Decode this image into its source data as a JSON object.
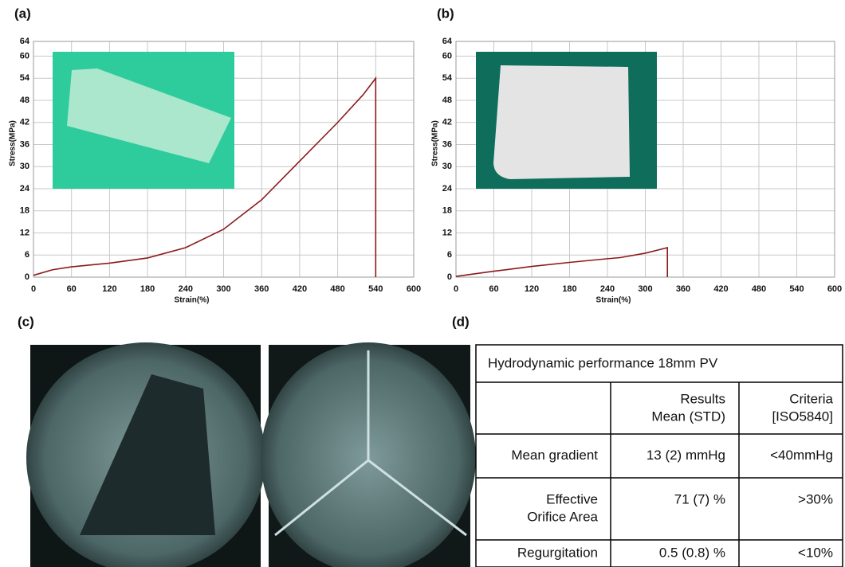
{
  "chart_data": [
    {
      "type": "line",
      "panel_label": "(a)",
      "xlabel": "Strain(%)",
      "ylabel": "Stress(MPa)",
      "x": [
        0,
        30,
        60,
        120,
        180,
        240,
        300,
        360,
        420,
        480,
        520,
        540,
        540
      ],
      "series": [
        {
          "color": "#8b1a1a",
          "values": [
            0.5,
            2,
            2.8,
            3.8,
            5.2,
            8,
            13,
            21,
            31.5,
            42,
            49.5,
            54,
            0
          ]
        }
      ],
      "xlim": [
        0,
        600
      ],
      "ylim": [
        0,
        64
      ],
      "xticks": [
        0,
        60,
        120,
        180,
        240,
        300,
        360,
        420,
        480,
        540,
        600
      ],
      "yticks": [
        0,
        6,
        12,
        18,
        24,
        30,
        36,
        42,
        48,
        54,
        60,
        64
      ],
      "grid": true
    },
    {
      "type": "line",
      "panel_label": "(b)",
      "xlabel": "Strain(%)",
      "ylabel": "Stress(MPa)",
      "x": [
        0,
        60,
        120,
        180,
        240,
        260,
        300,
        335,
        335
      ],
      "series": [
        {
          "color": "#8b1a1a",
          "values": [
            0.2,
            1.6,
            2.9,
            4,
            5,
            5.3,
            6.5,
            8,
            0
          ]
        }
      ],
      "xlim": [
        0,
        600
      ],
      "ylim": [
        0,
        64
      ],
      "xticks": [
        0,
        60,
        120,
        180,
        240,
        300,
        360,
        420,
        480,
        540,
        600
      ],
      "yticks": [
        0,
        6,
        12,
        18,
        24,
        30,
        36,
        42,
        48,
        54,
        60,
        64
      ],
      "grid": true
    }
  ],
  "panel_c": {
    "label": "(c)"
  },
  "table": {
    "label": "(d)",
    "title": "Hydrodynamic performance 18mm PV",
    "header": [
      [
        "Results",
        "Mean (STD)"
      ],
      [
        "Criteria",
        "[ISO5840]"
      ]
    ],
    "rows": [
      [
        [
          "Mean gradient"
        ],
        [
          "13 (2) mmHg"
        ],
        [
          "<40mmHg"
        ]
      ],
      [
        [
          "Effective",
          "Orifice Area"
        ],
        [
          "71 (7) %"
        ],
        [
          ">30%"
        ]
      ],
      [
        [
          "Regurgitation"
        ],
        [
          "0.5 (0.8) %"
        ],
        [
          "<10%"
        ]
      ]
    ]
  }
}
